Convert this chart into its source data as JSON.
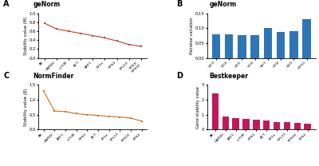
{
  "panel_A": {
    "title": "geNorm",
    "panel_label": "A",
    "x_labels": [
      "AK",
      "GAPDH",
      "α-TUB",
      "ACT",
      "ARF1",
      "EF1α",
      "RPS4",
      "RPL13",
      "RPS3/\nRPS18"
    ],
    "y_values": [
      0.78,
      0.65,
      0.6,
      0.55,
      0.5,
      0.45,
      0.38,
      0.3,
      0.26
    ],
    "ylabel": "Stability value (M)",
    "ylim": [
      0.0,
      1.0
    ],
    "yticks": [
      0.0,
      0.2,
      0.4,
      0.6,
      0.8,
      1.0
    ],
    "color": "#c0392b"
  },
  "panel_B": {
    "title": "geNorm",
    "panel_label": "B",
    "x_labels": [
      "V2/3",
      "V3/4",
      "V4/5",
      "V5/6",
      "V6/7",
      "V7/8",
      "V8/9",
      "V9/10"
    ],
    "y_values": [
      0.08,
      0.08,
      0.077,
      0.077,
      0.1,
      0.088,
      0.09,
      0.13
    ],
    "ylabel": "Pairwise variation",
    "ylim": [
      0.0,
      0.15
    ],
    "yticks": [
      0.0,
      0.05,
      0.1,
      0.15
    ],
    "color": "#2e75b6"
  },
  "panel_C": {
    "title": "NormFinder",
    "panel_label": "C",
    "x_labels": [
      "AK",
      "GAPDH",
      "ARF1",
      "α-TUB",
      "RPS3",
      "ACT",
      "EF1α",
      "RPL13",
      "RPS18",
      "RPS4"
    ],
    "y_values": [
      1.28,
      0.62,
      0.6,
      0.53,
      0.5,
      0.47,
      0.44,
      0.42,
      0.38,
      0.28
    ],
    "ylabel": "Stability value (β)",
    "ylim": [
      0.0,
      1.5
    ],
    "yticks": [
      0.0,
      0.5,
      1.0,
      1.5
    ],
    "color": "#c87020"
  },
  "panel_D": {
    "title": "Bestkeeper",
    "panel_label": "D",
    "x_labels": [
      "AK",
      "GAPDH",
      "ARF1",
      "α-TUB",
      "RPS3",
      "ACT",
      "EF1α",
      "RPL13",
      "RPS18",
      "RPS4"
    ],
    "y_values": [
      2.45,
      0.85,
      0.75,
      0.7,
      0.65,
      0.6,
      0.52,
      0.47,
      0.42,
      0.38
    ],
    "ylabel": "Gene stability value",
    "ylim": [
      0.0,
      3.0
    ],
    "yticks": [
      0.0,
      1.0,
      2.0,
      3.0
    ],
    "color": "#c2185b"
  }
}
